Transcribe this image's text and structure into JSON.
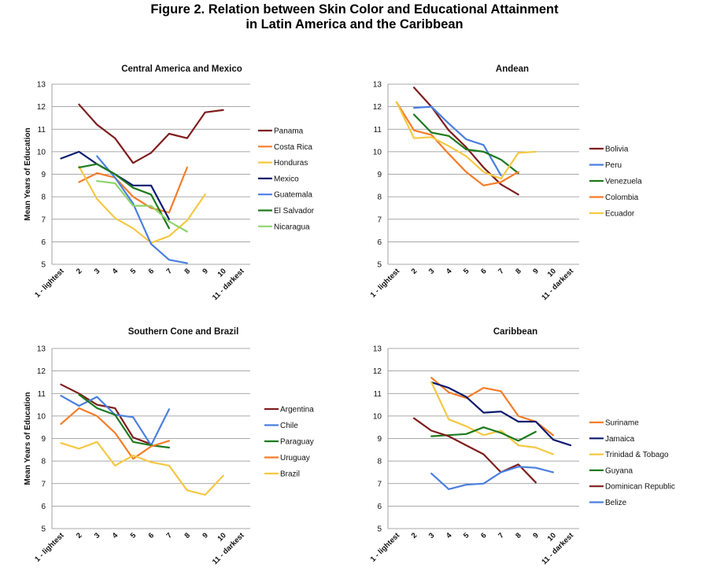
{
  "figure": {
    "title_line1": "Figure 2. Relation between Skin Color and Educational Attainment",
    "title_line2": "in Latin America and the Caribbean"
  },
  "chart_data": [
    {
      "type": "line",
      "title": "Central America and Mexico",
      "ylabel": "Mean Years of Education",
      "xlabel": "",
      "ylim": [
        5,
        13
      ],
      "yticks": [
        5,
        6,
        7,
        8,
        9,
        10,
        11,
        12,
        13
      ],
      "categories": [
        "1 - lightest",
        "2",
        "3",
        "4",
        "5",
        "6",
        "7",
        "8",
        "9",
        "10",
        "11 - darkest"
      ],
      "legend_position": "right",
      "series": [
        {
          "name": "Panama",
          "color": "#7f1d1d",
          "values": [
            null,
            12.1,
            11.2,
            10.6,
            9.5,
            9.95,
            10.8,
            10.6,
            11.75,
            11.85,
            null
          ]
        },
        {
          "name": "Costa Rica",
          "color": "#f57c28",
          "values": [
            null,
            8.65,
            9.05,
            8.85,
            8.0,
            7.5,
            7.3,
            9.3,
            null,
            null,
            null
          ]
        },
        {
          "name": "Honduras",
          "color": "#f5c842",
          "values": [
            null,
            9.35,
            7.9,
            7.05,
            6.6,
            5.95,
            6.25,
            6.95,
            8.1,
            null,
            null
          ]
        },
        {
          "name": "Mexico",
          "color": "#0d1b6e",
          "values": [
            9.7,
            10.0,
            9.45,
            9.0,
            8.5,
            8.5,
            7.0,
            null,
            null,
            null,
            null
          ]
        },
        {
          "name": "Guatemala",
          "color": "#4a7fe0",
          "values": [
            null,
            null,
            9.8,
            8.85,
            7.7,
            5.9,
            5.2,
            5.05,
            null,
            null,
            null
          ]
        },
        {
          "name": "El Salvador",
          "color": "#1d7a1d",
          "values": [
            null,
            9.3,
            9.45,
            9.0,
            8.4,
            8.1,
            6.6,
            null,
            null,
            null,
            null
          ]
        },
        {
          "name": "Nicaragua",
          "color": "#8fd46e",
          "values": [
            null,
            null,
            8.7,
            8.6,
            7.6,
            7.6,
            6.9,
            6.45,
            null,
            null,
            null
          ]
        }
      ]
    },
    {
      "type": "line",
      "title": "Andean",
      "ylabel": "",
      "xlabel": "",
      "ylim": [
        5,
        13
      ],
      "yticks": [
        5,
        6,
        7,
        8,
        9,
        10,
        11,
        12,
        13
      ],
      "categories": [
        "1 - lightest",
        "2",
        "3",
        "4",
        "5",
        "6",
        "7",
        "8",
        "9",
        "10",
        "11 - darkest"
      ],
      "legend_position": "right",
      "series": [
        {
          "name": "Bolivia",
          "color": "#7f1d1d",
          "values": [
            null,
            12.85,
            12.0,
            10.95,
            10.2,
            9.3,
            8.55,
            8.1,
            null,
            null,
            null
          ]
        },
        {
          "name": "Peru",
          "color": "#4a7fe0",
          "values": [
            null,
            11.95,
            12.0,
            11.25,
            10.55,
            10.3,
            8.95,
            null,
            null,
            null,
            null
          ]
        },
        {
          "name": "Venezuela",
          "color": "#1d7a1d",
          "values": [
            null,
            11.65,
            10.85,
            10.7,
            10.1,
            10.0,
            9.65,
            9.05,
            null,
            null,
            null
          ]
        },
        {
          "name": "Colombia",
          "color": "#f57c28",
          "values": [
            12.2,
            10.95,
            10.75,
            9.9,
            9.1,
            8.5,
            8.65,
            9.1,
            null,
            null,
            null
          ]
        },
        {
          "name": "Ecuador",
          "color": "#f5c842",
          "values": [
            12.2,
            10.6,
            10.65,
            10.25,
            9.8,
            9.1,
            8.8,
            9.95,
            10.0,
            null,
            null
          ]
        }
      ]
    },
    {
      "type": "line",
      "title": "Southern Cone and Brazil",
      "ylabel": "Mean Years of Education",
      "xlabel": "",
      "ylim": [
        5,
        13
      ],
      "yticks": [
        5,
        6,
        7,
        8,
        9,
        10,
        11,
        12,
        13
      ],
      "categories": [
        "1 - lightest",
        "2",
        "3",
        "4",
        "5",
        "6",
        "7",
        "8",
        "9",
        "10",
        "11 - darkest"
      ],
      "legend_position": "right",
      "series": [
        {
          "name": "Argentina",
          "color": "#7f1d1d",
          "values": [
            11.4,
            11.0,
            10.5,
            10.35,
            9.05,
            8.75,
            null,
            null,
            null,
            null,
            null
          ]
        },
        {
          "name": "Chile",
          "color": "#4a7fe0",
          "values": [
            10.9,
            10.45,
            10.85,
            10.05,
            9.95,
            8.7,
            10.3,
            null,
            null,
            null,
            null
          ]
        },
        {
          "name": "Paraguay",
          "color": "#1d7a1d",
          "values": [
            null,
            10.95,
            10.35,
            10.05,
            8.85,
            8.7,
            8.6,
            null,
            null,
            null,
            null
          ]
        },
        {
          "name": "Uruguay",
          "color": "#f57c28",
          "values": [
            9.65,
            10.35,
            10.0,
            9.25,
            8.1,
            8.65,
            8.9,
            null,
            null,
            null,
            null
          ]
        },
        {
          "name": "Brazil",
          "color": "#f5c842",
          "values": [
            8.8,
            8.55,
            8.85,
            7.8,
            8.25,
            7.95,
            7.8,
            6.7,
            6.5,
            7.35,
            null
          ]
        }
      ]
    },
    {
      "type": "line",
      "title": "Caribbean",
      "ylabel": "",
      "xlabel": "",
      "ylim": [
        5,
        13
      ],
      "yticks": [
        5,
        6,
        7,
        8,
        9,
        10,
        11,
        12,
        13
      ],
      "categories": [
        "1 - lightest",
        "2",
        "3",
        "4",
        "5",
        "6",
        "7",
        "8",
        "9",
        "10",
        "11 - darkest"
      ],
      "legend_position": "right",
      "series": [
        {
          "name": "Suriname",
          "color": "#f57c28",
          "values": [
            null,
            null,
            11.7,
            11.05,
            10.8,
            11.25,
            11.1,
            10.0,
            9.75,
            9.15,
            null
          ]
        },
        {
          "name": "Jamaica",
          "color": "#0d1b6e",
          "values": [
            null,
            null,
            11.5,
            11.25,
            10.85,
            10.15,
            10.2,
            9.75,
            9.75,
            8.95,
            8.7
          ]
        },
        {
          "name": "Trinidad & Tobago",
          "color": "#f5c842",
          "values": [
            null,
            null,
            11.5,
            9.85,
            9.55,
            9.15,
            9.35,
            8.7,
            8.6,
            8.3,
            null
          ]
        },
        {
          "name": "Guyana",
          "color": "#1d7a1d",
          "values": [
            null,
            null,
            9.1,
            9.15,
            9.2,
            9.5,
            9.25,
            8.9,
            9.3,
            null,
            null
          ]
        },
        {
          "name": "Dominican Republic",
          "color": "#7f1d1d",
          "values": [
            null,
            9.9,
            9.35,
            9.1,
            8.7,
            8.3,
            7.5,
            7.85,
            7.05,
            null,
            null
          ]
        },
        {
          "name": "Belize",
          "color": "#4a7fe0",
          "values": [
            null,
            null,
            7.45,
            6.75,
            6.95,
            7.0,
            7.5,
            7.75,
            7.7,
            7.5,
            null
          ]
        }
      ]
    }
  ]
}
